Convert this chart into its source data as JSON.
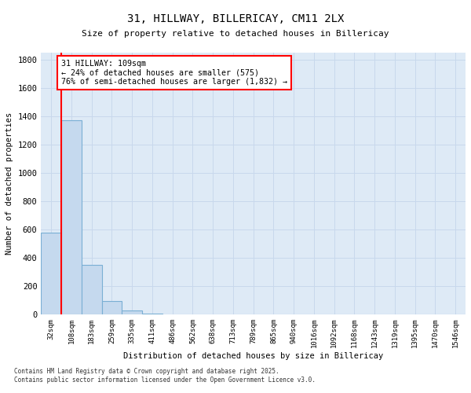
{
  "title1": "31, HILLWAY, BILLERICAY, CM11 2LX",
  "title2": "Size of property relative to detached houses in Billericay",
  "xlabel": "Distribution of detached houses by size in Billericay",
  "ylabel": "Number of detached properties",
  "bar_labels": [
    "32sqm",
    "108sqm",
    "183sqm",
    "259sqm",
    "335sqm",
    "411sqm",
    "486sqm",
    "562sqm",
    "638sqm",
    "713sqm",
    "789sqm",
    "865sqm",
    "940sqm",
    "1016sqm",
    "1092sqm",
    "1168sqm",
    "1243sqm",
    "1319sqm",
    "1395sqm",
    "1470sqm",
    "1546sqm"
  ],
  "bar_heights": [
    575,
    1370,
    350,
    95,
    30,
    5,
    2,
    1,
    1,
    0,
    0,
    0,
    0,
    0,
    0,
    0,
    0,
    0,
    0,
    0,
    0
  ],
  "bar_color": "#c5d9ee",
  "bar_edge_color": "#7aafd4",
  "property_line_color": "red",
  "annotation_title": "31 HILLWAY: 109sqm",
  "annotation_line1": "← 24% of detached houses are smaller (575)",
  "annotation_line2": "76% of semi-detached houses are larger (1,832) →",
  "annotation_edge_color": "red",
  "ylim": [
    0,
    1850
  ],
  "yticks": [
    0,
    200,
    400,
    600,
    800,
    1000,
    1200,
    1400,
    1600,
    1800
  ],
  "grid_color": "#c8d8ec",
  "background_color": "#deeaf6",
  "footer1": "Contains HM Land Registry data © Crown copyright and database right 2025.",
  "footer2": "Contains public sector information licensed under the Open Government Licence v3.0."
}
